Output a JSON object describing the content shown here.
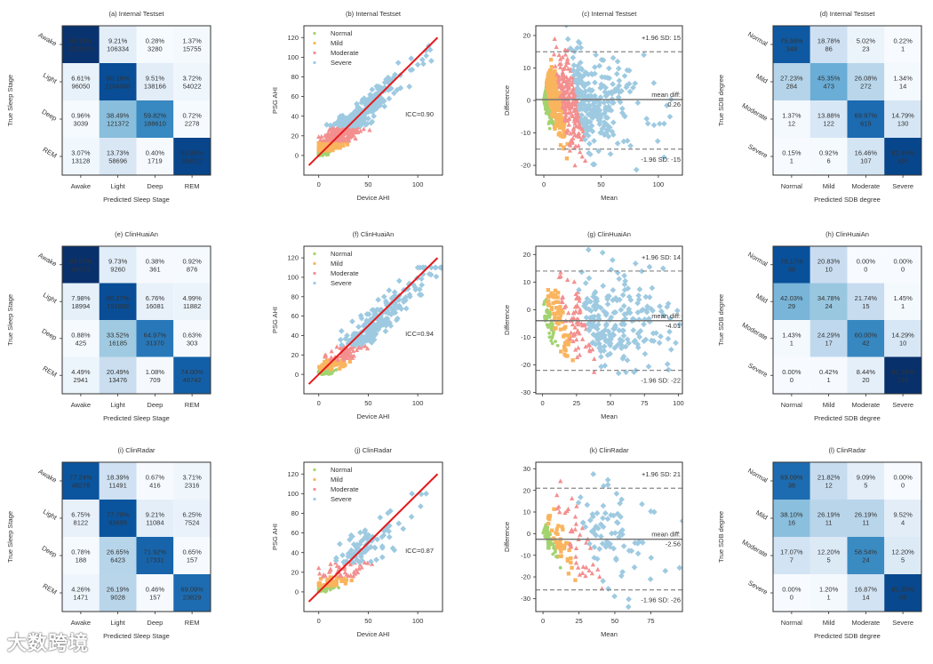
{
  "colors": {
    "Normal": "#a3d36f",
    "Mild": "#f9b45e",
    "Moderate": "#f38f8f",
    "Severe": "#9ecae1",
    "identity_line": "#e41a1c",
    "mean_line": "#777777",
    "limit_line": "#888888"
  },
  "watermark": "大数跨境",
  "chart_data": [
    {
      "type": "heatmap",
      "panel": "a",
      "title": "(a) Internal Testset",
      "xlabel": "Predicted Sleep Stage",
      "ylabel": "True Sleep Stage",
      "labels": [
        "Awake",
        "Light",
        "Deep",
        "REM"
      ],
      "percent": [
        [
          "89.14%",
          "9.21%",
          "0.28%",
          "1.37%"
        ],
        [
          "6.61%",
          "80.16%",
          "9.51%",
          "3.72%"
        ],
        [
          "0.96%",
          "38.49%",
          "59.82%",
          "0.72%"
        ],
        [
          "3.07%",
          "13.73%",
          "0.40%",
          "82.80%"
        ]
      ],
      "counts": [
        [
          "1028835",
          "106334",
          "3280",
          "15755"
        ],
        [
          "96050",
          "1164386",
          "138166",
          "54022"
        ],
        [
          "3039",
          "121372",
          "188610",
          "2278"
        ],
        [
          "13128",
          "58696",
          "1719",
          "354017"
        ]
      ]
    },
    {
      "type": "scatter",
      "panel": "b",
      "title": "(b) Internal Testset",
      "xlabel": "Device AHI",
      "ylabel": "PSG AHI",
      "xlim": [
        -15,
        125
      ],
      "ylim": [
        -20,
        132
      ],
      "xticks": [
        0,
        50,
        100
      ],
      "yticks": [
        0,
        20,
        40,
        60,
        80,
        100,
        120
      ],
      "legend": [
        "Normal",
        "Mild",
        "Moderate",
        "Severe"
      ],
      "legend_loc": "top-left",
      "annotation": "ICC=0.90",
      "groups": [
        {
          "name": "Normal",
          "n": 150,
          "psg": [
            0,
            5
          ]
        },
        {
          "name": "Mild",
          "n": 260,
          "psg": [
            5,
            15
          ]
        },
        {
          "name": "Moderate",
          "n": 230,
          "psg": [
            15,
            30
          ]
        },
        {
          "name": "Severe",
          "n": 260,
          "psg": [
            30,
            122
          ],
          "decay": 20
        }
      ],
      "bias": -0.26,
      "noise_sd": 7.6
    },
    {
      "type": "bland-altman",
      "panel": "c",
      "source": "b",
      "title": "(c) Internal Testset",
      "xlabel": "Mean",
      "ylabel": "Difference",
      "xlim": [
        -7,
        121
      ],
      "ylim": [
        -23,
        23
      ],
      "xticks": [
        0,
        50,
        100
      ],
      "yticks": [
        -20,
        -10,
        0,
        10,
        20
      ],
      "mean_diff": 0.26,
      "upper": 15,
      "lower": -15,
      "upper_label": "+1.96 SD: 15",
      "mean_label": "mean diff:",
      "mean_value": "0.26",
      "lower_label": "-1.96 SD: -15"
    },
    {
      "type": "heatmap",
      "panel": "d",
      "title": "(d) Internal Testset",
      "xlabel": "Predicted SDB degree",
      "ylabel": "True SDB degree",
      "labels": [
        "Normal",
        "Mild",
        "Moderate",
        "Severe"
      ],
      "percent": [
        [
          "75.98%",
          "18.78%",
          "5.02%",
          "0.22%"
        ],
        [
          "27.23%",
          "45.35%",
          "26.08%",
          "1.34%"
        ],
        [
          "1.37%",
          "13.88%",
          "69.97%",
          "14.79%"
        ],
        [
          "0.15%",
          "0.92%",
          "16.46%",
          "82.46%"
        ]
      ],
      "counts": [
        [
          "348",
          "86",
          "23",
          "1"
        ],
        [
          "284",
          "473",
          "272",
          "14"
        ],
        [
          "12",
          "122",
          "615",
          "130"
        ],
        [
          "1",
          "6",
          "107",
          "536"
        ]
      ]
    },
    {
      "type": "heatmap",
      "panel": "e",
      "title": "(e) ClinHuaiAn",
      "xlabel": "Predicted Sleep Stage",
      "ylabel": "True Sleep Stage",
      "labels": [
        "Awake",
        "Light",
        "Deep",
        "REM"
      ],
      "percent": [
        [
          "89.97%",
          "9.73%",
          "0.38%",
          "0.92%"
        ],
        [
          "7.98%",
          "80.27%",
          "6.76%",
          "4.99%"
        ],
        [
          "0.88%",
          "33.52%",
          "64.97%",
          "0.63%"
        ],
        [
          "4.49%",
          "20.49%",
          "1.08%",
          "74.00%"
        ]
      ],
      "counts": [
        [
          "84673",
          "9260",
          "361",
          "876"
        ],
        [
          "18994",
          "191096",
          "16081",
          "11882"
        ],
        [
          "425",
          "16185",
          "31370",
          "303"
        ],
        [
          "2941",
          "13476",
          "709",
          "48742"
        ]
      ]
    },
    {
      "type": "scatter",
      "panel": "f",
      "title": "(f) ClinHuaiAn",
      "xlabel": "Device AHI",
      "ylabel": "PSG AHI",
      "xlim": [
        -15,
        125
      ],
      "ylim": [
        -20,
        132
      ],
      "xticks": [
        0,
        50,
        100
      ],
      "yticks": [
        0,
        20,
        40,
        60,
        80,
        100,
        120
      ],
      "legend": [
        "Normal",
        "Mild",
        "Moderate",
        "Severe"
      ],
      "legend_loc": "top-left",
      "annotation": "ICC=0.94",
      "groups": [
        {
          "name": "Normal",
          "n": 48,
          "psg": [
            0,
            5
          ]
        },
        {
          "name": "Mild",
          "n": 69,
          "psg": [
            5,
            15
          ]
        },
        {
          "name": "Moderate",
          "n": 70,
          "psg": [
            15,
            30
          ]
        },
        {
          "name": "Severe",
          "n": 237,
          "psg": [
            30,
            110
          ],
          "decay": 30
        }
      ],
      "bias": 4.01,
      "noise_sd": 9.2
    },
    {
      "type": "bland-altman",
      "panel": "g",
      "source": "f",
      "title": "(g) ClinHuaiAn",
      "xlabel": "Mean",
      "ylabel": "Difference",
      "xlim": [
        -5,
        103
      ],
      "ylim": [
        -30.5,
        23
      ],
      "xticks": [
        0,
        25,
        50,
        75,
        100
      ],
      "yticks": [
        -30,
        -20,
        -10,
        0,
        10,
        20
      ],
      "mean_diff": -4.01,
      "upper": 14,
      "lower": -22,
      "upper_label": "+1.96 SD: 14",
      "mean_label": "mean diff:",
      "mean_value": "-4.01",
      "lower_label": "-1.96 SD: -22"
    },
    {
      "type": "heatmap",
      "panel": "h",
      "title": "(h) ClinHuaiAn",
      "xlabel": "Predicted SDB degree",
      "ylabel": "True SDB degree",
      "labels": [
        "Normal",
        "Mild",
        "Moderate",
        "Severe"
      ],
      "percent": [
        [
          "79.17%",
          "20.83%",
          "0.00%",
          "0.00%"
        ],
        [
          "42.03%",
          "34.78%",
          "21.74%",
          "1.45%"
        ],
        [
          "1.43%",
          "24.29%",
          "60.00%",
          "14.29%"
        ],
        [
          "0.00%",
          "0.42%",
          "8.44%",
          "91.14%"
        ]
      ],
      "counts": [
        [
          "38",
          "10",
          "0",
          "0"
        ],
        [
          "29",
          "24",
          "15",
          "1"
        ],
        [
          "1",
          "17",
          "42",
          "10"
        ],
        [
          "0",
          "1",
          "20",
          "216"
        ]
      ]
    },
    {
      "type": "heatmap",
      "panel": "i",
      "title": "(i) ClinRadar",
      "xlabel": "Predicted Sleep Stage",
      "ylabel": "True Sleep Stage",
      "labels": [
        "Awake",
        "Light",
        "Deep",
        "REM"
      ],
      "percent": [
        [
          "77.24%",
          "18.39%",
          "0.67%",
          "3.71%"
        ],
        [
          "6.75%",
          "77.79%",
          "9.21%",
          "6.25%"
        ],
        [
          "0.78%",
          "26.65%",
          "71.92%",
          "0.65%"
        ],
        [
          "4.26%",
          "26.19%",
          "0.46%",
          "69.09%"
        ]
      ],
      "counts": [
        [
          "48276",
          "11491",
          "416",
          "2316"
        ],
        [
          "8122",
          "93695",
          "11084",
          "7524"
        ],
        [
          "188",
          "6423",
          "17331",
          "157"
        ],
        [
          "1471",
          "9028",
          "157",
          "23829"
        ]
      ]
    },
    {
      "type": "scatter",
      "panel": "j",
      "title": "(j) ClinRadar",
      "xlabel": "Device AHI",
      "ylabel": "PSG AHI",
      "xlim": [
        -15,
        125
      ],
      "ylim": [
        -20,
        132
      ],
      "xticks": [
        0,
        50,
        100
      ],
      "yticks": [
        0,
        20,
        40,
        60,
        80,
        100,
        120
      ],
      "legend": [
        "Normal",
        "Mild",
        "Moderate",
        "Severe"
      ],
      "legend_loc": "top-left",
      "annotation": "ICC=0.87",
      "groups": [
        {
          "name": "Normal",
          "n": 55,
          "psg": [
            0,
            5
          ]
        },
        {
          "name": "Mild",
          "n": 42,
          "psg": [
            5,
            15
          ]
        },
        {
          "name": "Moderate",
          "n": 41,
          "psg": [
            15,
            30
          ]
        },
        {
          "name": "Severe",
          "n": 83,
          "psg": [
            30,
            100
          ],
          "decay": 22
        }
      ],
      "bias": 2.56,
      "noise_sd": 11.8
    },
    {
      "type": "bland-altman",
      "panel": "k",
      "source": "j",
      "title": "(k) ClinRadar",
      "xlabel": "Mean",
      "ylabel": "Difference",
      "xlim": [
        -5,
        97
      ],
      "ylim": [
        -36,
        33
      ],
      "xticks": [
        0,
        25,
        50,
        75
      ],
      "yticks": [
        -30,
        -20,
        -10,
        0,
        10,
        20,
        30
      ],
      "mean_diff": -2.56,
      "upper": 21,
      "lower": -26,
      "upper_label": "+1.96 SD: 21",
      "mean_label": "mean diff:",
      "mean_value": "-2.56",
      "lower_label": "-1.96 SD: -26"
    },
    {
      "type": "heatmap",
      "panel": "l",
      "title": "(l) ClinRadar",
      "xlabel": "Predicted SDB degree",
      "ylabel": "True SDB degree",
      "labels": [
        "Normal",
        "Mild",
        "Moderate",
        "Severe"
      ],
      "percent": [
        [
          "69.09%",
          "21.82%",
          "9.09%",
          "0.00%"
        ],
        [
          "38.10%",
          "26.19%",
          "26.19%",
          "9.52%"
        ],
        [
          "17.07%",
          "12.20%",
          "58.54%",
          "12.20%"
        ],
        [
          "0.00%",
          "1.20%",
          "16.87%",
          "81.93%"
        ]
      ],
      "counts": [
        [
          "38",
          "12",
          "5",
          "0"
        ],
        [
          "16",
          "11",
          "11",
          "4"
        ],
        [
          "7",
          "5",
          "24",
          "5"
        ],
        [
          "0",
          "1",
          "14",
          "68"
        ]
      ]
    }
  ]
}
